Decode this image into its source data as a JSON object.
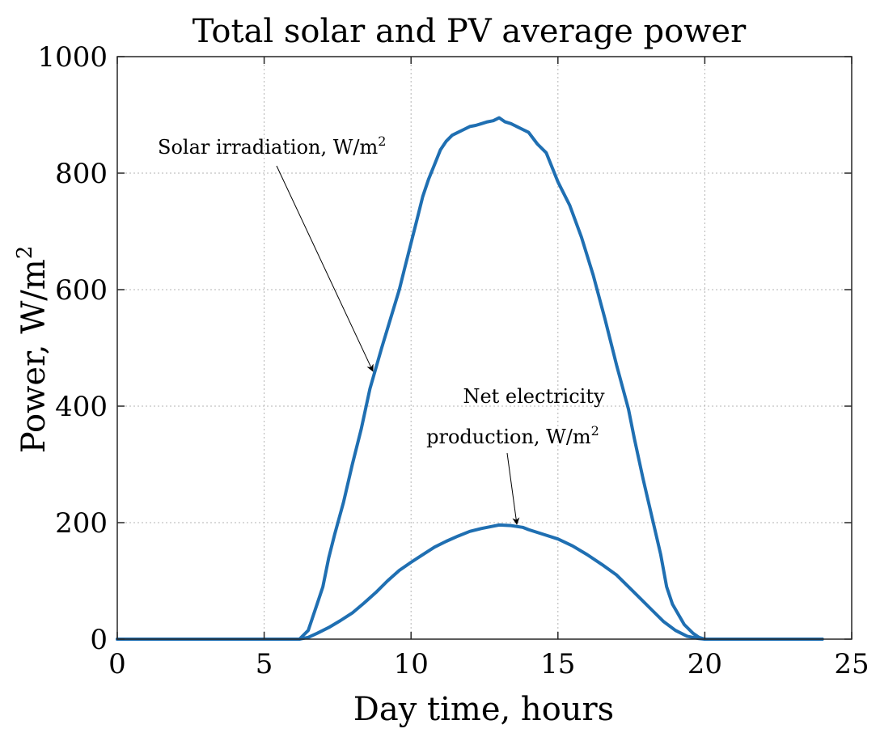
{
  "chart_data": {
    "type": "line",
    "title": "Total solar and PV average power",
    "xlabel": "Day time, hours",
    "ylabel": "Power, W/m",
    "ylabel_superscript": "2",
    "xlim": [
      0,
      25
    ],
    "ylim": [
      0,
      1000
    ],
    "xticks": [
      0,
      5,
      10,
      15,
      20,
      25
    ],
    "yticks": [
      0,
      200,
      400,
      600,
      800,
      1000
    ],
    "grid": true,
    "series_color": "#1f6fb2",
    "series": [
      {
        "name": "Solar irradiation",
        "x": [
          0,
          6.2,
          6.5,
          6.8,
          7.0,
          7.2,
          7.4,
          7.7,
          8.0,
          8.3,
          8.6,
          9.0,
          9.3,
          9.6,
          9.8,
          10.0,
          10.2,
          10.4,
          10.6,
          10.8,
          11.0,
          11.2,
          11.4,
          11.6,
          11.8,
          12.0,
          12.2,
          12.4,
          12.6,
          12.8,
          13.0,
          13.2,
          13.4,
          13.6,
          13.8,
          14.0,
          14.3,
          14.6,
          15.0,
          15.4,
          15.8,
          16.2,
          16.6,
          17.0,
          17.4,
          17.6,
          17.9,
          18.2,
          18.5,
          18.7,
          18.9,
          19.3,
          19.6,
          19.8,
          20.0,
          24.0
        ],
        "values": [
          0,
          0,
          15,
          60,
          90,
          140,
          180,
          235,
          300,
          360,
          430,
          500,
          550,
          600,
          640,
          680,
          720,
          760,
          790,
          815,
          840,
          855,
          865,
          870,
          875,
          880,
          882,
          885,
          888,
          890,
          895,
          888,
          885,
          880,
          875,
          870,
          850,
          835,
          785,
          745,
          690,
          625,
          550,
          470,
          395,
          345,
          275,
          210,
          145,
          90,
          60,
          25,
          10,
          3,
          0,
          0
        ]
      },
      {
        "name": "Net electricity production",
        "x": [
          0,
          6.2,
          6.5,
          6.8,
          7.2,
          7.6,
          8.0,
          8.4,
          8.8,
          9.2,
          9.6,
          10.0,
          10.4,
          10.8,
          11.2,
          11.6,
          12.0,
          12.4,
          12.8,
          13.0,
          13.4,
          13.8,
          14.0,
          14.5,
          15.0,
          15.5,
          16.0,
          16.5,
          17.0,
          17.4,
          17.8,
          18.2,
          18.6,
          19.0,
          19.4,
          19.8,
          20.0,
          24.0
        ],
        "values": [
          0,
          0,
          3,
          10,
          20,
          32,
          45,
          62,
          80,
          100,
          118,
          132,
          145,
          158,
          168,
          177,
          185,
          190,
          194,
          196,
          195,
          192,
          188,
          180,
          172,
          160,
          145,
          128,
          110,
          90,
          70,
          50,
          30,
          15,
          5,
          1,
          0,
          0
        ]
      }
    ],
    "annotations": [
      {
        "text": "Solar irradiation, W/m",
        "superscript": "2",
        "points_to": {
          "x": 8.7,
          "y": 460
        }
      },
      {
        "line1": "Net electricity",
        "line2": "production, W/m",
        "superscript": "2",
        "points_to": {
          "x": 13.6,
          "y": 200
        }
      }
    ]
  }
}
